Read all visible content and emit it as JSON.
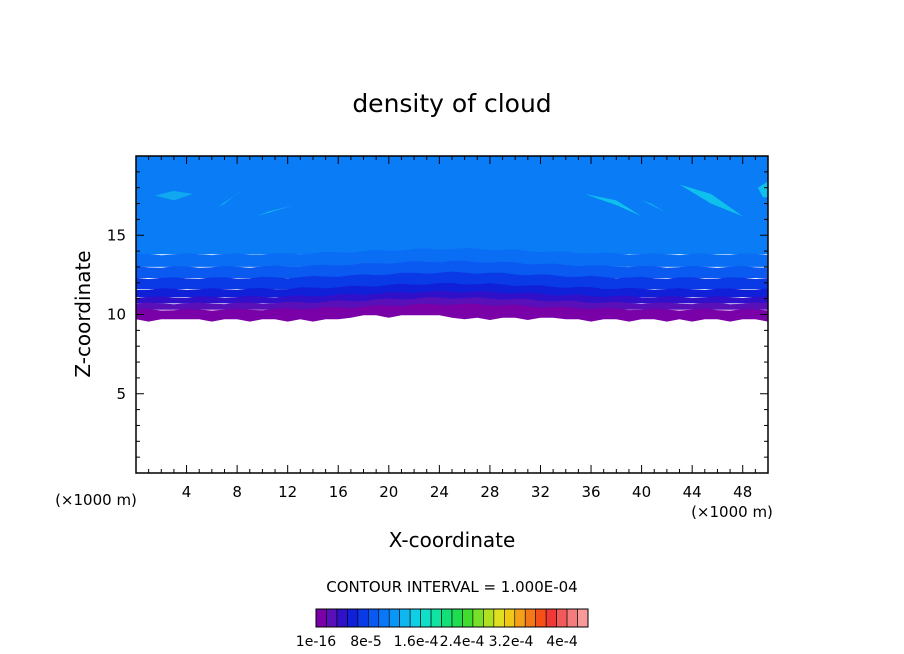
{
  "chart_data": {
    "type": "heatmap",
    "title": "density of cloud",
    "xlabel": "X-coordinate",
    "ylabel": "Z-coordinate",
    "x_unit": "(×1000 m)",
    "z_unit": "(×1000 m)",
    "xlim": [
      0,
      50
    ],
    "ylim": [
      0,
      20
    ],
    "x_ticks": [
      "4",
      "8",
      "12",
      "16",
      "20",
      "24",
      "28",
      "32",
      "36",
      "40",
      "44",
      "48"
    ],
    "y_ticks": [
      "5",
      "10",
      "15"
    ],
    "contour_interval_label": "CONTOUR INTERVAL = 1.000E-04",
    "colorbar": {
      "labels": [
        "1e-16",
        "8e-5",
        "1.6e-4",
        "2.4e-4",
        "3.2e-4",
        "4e-4"
      ],
      "colors": [
        "#7a00a8",
        "#5a10b8",
        "#3010c8",
        "#1020d8",
        "#0a3ae6",
        "#0a5af2",
        "#0a78f6",
        "#0a96f6",
        "#10b6f0",
        "#10d0e6",
        "#10e0c8",
        "#10e4a0",
        "#14e07a",
        "#20dc50",
        "#40dc30",
        "#78e028",
        "#b0e020",
        "#e0e020",
        "#f0c818",
        "#f4a018",
        "#f47818",
        "#f45018",
        "#f03838",
        "#f05a5a",
        "#f47c7c",
        "#f89a9a"
      ]
    },
    "bands": [
      {
        "z_bottom": 9.7,
        "z_top": 10.3,
        "color": "#7a00a8"
      },
      {
        "z_bottom": 10.3,
        "z_top": 10.7,
        "color": "#5a10b8"
      },
      {
        "z_bottom": 10.7,
        "z_top": 11.1,
        "color": "#3010c8"
      },
      {
        "z_bottom": 11.1,
        "z_top": 11.6,
        "color": "#1020d8"
      },
      {
        "z_bottom": 11.6,
        "z_top": 12.3,
        "color": "#0a3ae6"
      },
      {
        "z_bottom": 12.3,
        "z_top": 13.0,
        "color": "#0a5af2"
      },
      {
        "z_bottom": 13.0,
        "z_top": 13.8,
        "color": "#0a6ef4"
      },
      {
        "z_bottom": 13.8,
        "z_top": 20.0,
        "color": "#0a7cf6"
      }
    ],
    "patches": [
      {
        "x": [
          1.5,
          3.0,
          4.5,
          3.0
        ],
        "z": [
          17.5,
          17.2,
          17.6,
          17.8
        ],
        "color": "#10a8f0"
      },
      {
        "x": [
          6.5,
          8.0,
          8.6,
          7.0
        ],
        "z": [
          16.8,
          17.6,
          18.0,
          17.0
        ],
        "color": "#10c0ec"
      },
      {
        "x": [
          9.5,
          12.5,
          13.5,
          10.5
        ],
        "z": [
          16.2,
          16.9,
          17.1,
          16.5
        ],
        "color": "#10c0ec"
      },
      {
        "x": [
          12.5,
          14.5,
          15.5,
          13.5
        ],
        "z": [
          17.0,
          17.4,
          17.6,
          17.2
        ],
        "color": "#10b0f0"
      },
      {
        "x": [
          35.5,
          38.0,
          40.0,
          38.0
        ],
        "z": [
          17.6,
          17.2,
          16.2,
          16.9
        ],
        "color": "#10c0ec"
      },
      {
        "x": [
          40.0,
          41.5,
          42.0,
          40.8
        ],
        "z": [
          17.2,
          16.6,
          16.4,
          17.0
        ],
        "color": "#10a8f0"
      },
      {
        "x": [
          43.0,
          45.5,
          48.0,
          45.5
        ],
        "z": [
          18.2,
          17.6,
          16.2,
          17.0
        ],
        "color": "#10c0ec"
      },
      {
        "x": [
          49.2,
          50.0,
          50.0,
          49.6
        ],
        "z": [
          18.0,
          18.4,
          17.4,
          17.4
        ],
        "color": "#10c0ec"
      }
    ]
  }
}
